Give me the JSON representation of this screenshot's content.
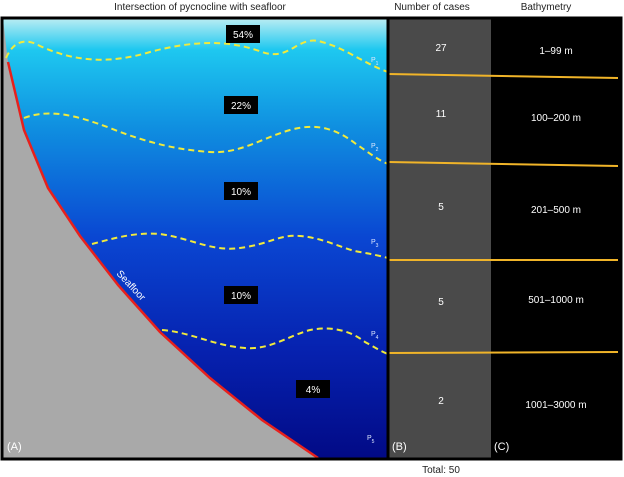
{
  "headers": {
    "panel_a": "Intersection of pycnocline with seafloor",
    "cases": "Number of cases",
    "bathymetry": "Bathymetry"
  },
  "panel_labels": {
    "a": "(A)",
    "b": "(B)",
    "c": "(C)"
  },
  "seafloor_label": "Seafloor",
  "pycnoclines": [
    {
      "letter": "P",
      "sub": "1"
    },
    {
      "letter": "P",
      "sub": "2"
    },
    {
      "letter": "P",
      "sub": "3"
    },
    {
      "letter": "P",
      "sub": "4"
    },
    {
      "letter": "P",
      "sub": "5"
    }
  ],
  "percentages": [
    "54%",
    "22%",
    "10%",
    "10%",
    "4%"
  ],
  "counts": [
    "27",
    "11",
    "5",
    "5",
    "2"
  ],
  "depth_ranges": [
    "1–99 m",
    "100–200 m",
    "201–500 m",
    "501–1000 m",
    "1001–3000 m"
  ],
  "total": "Total: 50",
  "colors": {
    "water_top": "#aee6ef",
    "water_shallow": "#19c4ee",
    "water_mid": "#0b52d6",
    "water_deep": "#020a88",
    "seafloor_fill": "#aaaaaa",
    "seafloor_line": "#e8201c",
    "pycnocline": "#f1ea3c",
    "boundary": "#f0b429",
    "cases_panel": "#4a4a4a",
    "bathy_panel": "#000000"
  }
}
